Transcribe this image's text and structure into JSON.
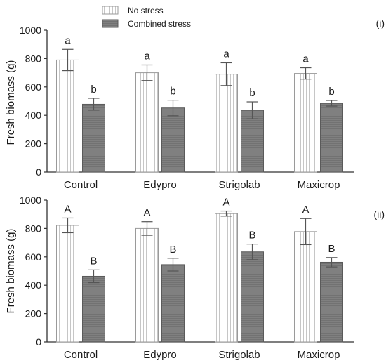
{
  "legend": {
    "no_stress_label": "No stress",
    "combined_label": "Combined stress"
  },
  "colors": {
    "no_stress_fill": "#ffffff",
    "no_stress_stripe": "#b8b8b8",
    "no_stress_edge": "#9a9a9a",
    "combined_fill": "#808080",
    "combined_stripe": "#6e6e6e",
    "combined_edge": "#5a5a5a"
  },
  "chart_data": [
    {
      "type": "bar",
      "panel_label": "(i)",
      "ylabel": "Fresh biomass (g)",
      "xlabel": "",
      "ylim": [
        0,
        1000
      ],
      "yticks": [
        0,
        200,
        400,
        600,
        800,
        1000
      ],
      "categories": [
        "Control",
        "Edypro",
        "Strigolab",
        "Maxicrop"
      ],
      "series": [
        {
          "name": "No stress",
          "values": [
            790,
            700,
            690,
            695
          ],
          "errors": [
            75,
            55,
            80,
            40
          ],
          "labels": [
            "a",
            "a",
            "a",
            "a"
          ]
        },
        {
          "name": "Combined stress",
          "values": [
            478,
            452,
            435,
            485
          ],
          "errors": [
            42,
            55,
            60,
            20
          ],
          "labels": [
            "b",
            "b",
            "b",
            "b"
          ]
        }
      ]
    },
    {
      "type": "bar",
      "panel_label": "(ii)",
      "ylabel": "Fresh biomass (g)",
      "xlabel": "",
      "ylim": [
        0,
        1000
      ],
      "yticks": [
        0,
        200,
        400,
        600,
        800,
        1000
      ],
      "categories": [
        "Control",
        "Edypro",
        "Strigolab",
        "Maxicrop"
      ],
      "series": [
        {
          "name": "No stress",
          "values": [
            822,
            800,
            905,
            778
          ],
          "errors": [
            52,
            48,
            18,
            92
          ],
          "labels": [
            "A",
            "A",
            "A",
            "A"
          ]
        },
        {
          "name": "Combined stress",
          "values": [
            463,
            545,
            635,
            562
          ],
          "errors": [
            45,
            45,
            55,
            33
          ],
          "labels": [
            "B",
            "B",
            "B",
            "B"
          ]
        }
      ]
    }
  ]
}
